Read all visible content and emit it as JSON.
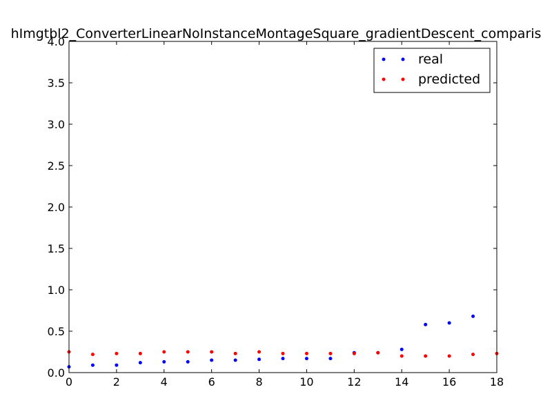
{
  "chart_data": {
    "type": "scatter",
    "title": "hImgtbl2_ConverterLinearNoInstanceMontageSquare_gradientDescent_comparis",
    "xlabel": "",
    "ylabel": "",
    "xlim": [
      0,
      18
    ],
    "ylim": [
      0,
      4.0
    ],
    "x_ticks": [
      "0",
      "2",
      "4",
      "6",
      "8",
      "10",
      "12",
      "14",
      "16",
      "18"
    ],
    "y_ticks": [
      "0.0",
      "0.5",
      "1.0",
      "1.5",
      "2.0",
      "2.5",
      "3.0",
      "3.5",
      "4.0"
    ],
    "grid": false,
    "legend_position": "top-right",
    "series": [
      {
        "name": "real",
        "color": "#0000ff",
        "x": [
          0,
          1,
          2,
          3,
          4,
          5,
          6,
          7,
          8,
          9,
          10,
          11,
          12,
          13,
          14,
          15,
          16,
          17
        ],
        "y": [
          0.07,
          0.09,
          0.09,
          0.12,
          0.13,
          0.13,
          0.15,
          0.15,
          0.16,
          0.17,
          0.17,
          0.17,
          0.24,
          0.24,
          0.28,
          0.58,
          0.6,
          0.68
        ]
      },
      {
        "name": "predicted",
        "color": "#ff0000",
        "x": [
          0,
          1,
          2,
          3,
          4,
          5,
          6,
          7,
          8,
          9,
          10,
          11,
          12,
          13,
          14,
          15,
          16,
          17,
          18
        ],
        "y": [
          0.25,
          0.22,
          0.23,
          0.23,
          0.25,
          0.25,
          0.25,
          0.23,
          0.25,
          0.23,
          0.23,
          0.23,
          0.23,
          0.24,
          0.2,
          0.2,
          0.2,
          0.22,
          0.23
        ]
      }
    ]
  }
}
